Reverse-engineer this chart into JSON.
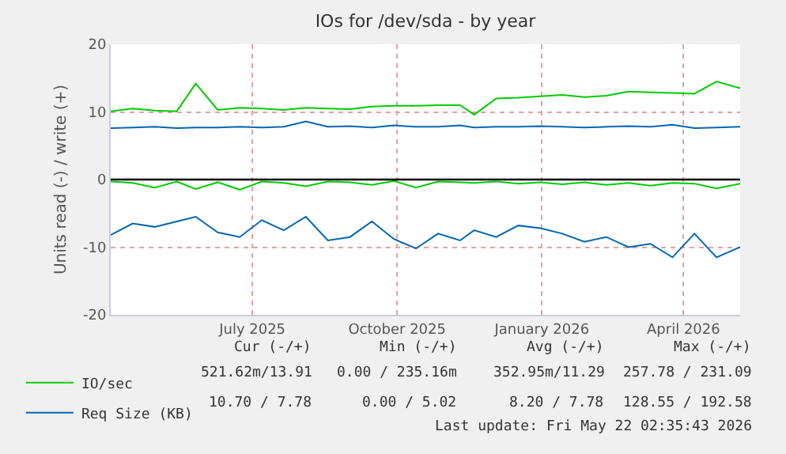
{
  "chart_data": {
    "type": "line",
    "title": "IOs for /dev/sda - by year",
    "ylabel": "Units read (-) / write (+)",
    "x": [
      "2025-04-17",
      "2025-05-01",
      "2025-05-15",
      "2025-05-29",
      "2025-06-10",
      "2025-06-24",
      "2025-07-08",
      "2025-07-22",
      "2025-08-05",
      "2025-08-19",
      "2025-09-02",
      "2025-09-16",
      "2025-09-30",
      "2025-10-14",
      "2025-10-28",
      "2025-11-11",
      "2025-11-25",
      "2025-12-04",
      "2025-12-18",
      "2026-01-01",
      "2026-01-15",
      "2026-01-29",
      "2026-02-12",
      "2026-02-26",
      "2026-03-12",
      "2026-03-26",
      "2026-04-09",
      "2026-04-23",
      "2026-05-07",
      "2026-05-22"
    ],
    "series": [
      {
        "name": "IO/sec",
        "color": "#00cc00",
        "values": [
          10.1,
          10.5,
          10.2,
          10.1,
          14.2,
          10.3,
          10.6,
          10.5,
          10.3,
          10.6,
          10.5,
          10.4,
          10.8,
          10.9,
          10.9,
          11.0,
          11.0,
          9.6,
          12.0,
          12.1,
          12.3,
          12.5,
          12.2,
          12.4,
          13.0,
          12.9,
          12.8,
          12.7,
          14.5,
          13.5
        ]
      },
      {
        "name": "Req Size (KB)",
        "color": "#0066b3",
        "values": [
          7.6,
          7.7,
          7.8,
          7.6,
          7.7,
          7.7,
          7.8,
          7.7,
          7.8,
          8.6,
          7.8,
          7.9,
          7.7,
          8.0,
          7.8,
          7.8,
          8.0,
          7.7,
          7.8,
          7.8,
          7.9,
          7.8,
          7.7,
          7.8,
          7.9,
          7.8,
          8.1,
          7.6,
          7.7,
          7.8
        ]
      },
      {
        "color": "#00cc00",
        "values": [
          -0.3,
          -0.5,
          -1.2,
          -0.3,
          -1.4,
          -0.4,
          -1.5,
          -0.3,
          -0.5,
          -1.0,
          -0.3,
          -0.4,
          -0.8,
          -0.2,
          -1.2,
          -0.3,
          -0.4,
          -0.5,
          -0.3,
          -0.6,
          -0.4,
          -0.7,
          -0.4,
          -0.8,
          -0.5,
          -0.9,
          -0.5,
          -0.6,
          -1.3,
          -0.6
        ]
      },
      {
        "color": "#0066b3",
        "values": [
          -8.2,
          -6.5,
          -7.0,
          -6.2,
          -5.5,
          -7.8,
          -8.5,
          -6.0,
          -7.5,
          -5.5,
          -9.0,
          -8.5,
          -6.2,
          -8.8,
          -10.2,
          -8.0,
          -9.0,
          -7.5,
          -8.5,
          -6.8,
          -7.2,
          -8.0,
          -9.2,
          -8.5,
          -10.0,
          -9.5,
          -11.5,
          -8.0,
          -11.5,
          -10.0
        ]
      }
    ],
    "xlim": [
      "2025-04-17",
      "2026-05-22"
    ],
    "xticks": [
      {
        "value": "2025-07-16",
        "label": "July 2025"
      },
      {
        "value": "2025-10-16",
        "label": "October 2025"
      },
      {
        "value": "2026-01-16",
        "label": "January 2026"
      },
      {
        "value": "2026-04-16",
        "label": "April 2026"
      }
    ],
    "ylim": [
      -20,
      20
    ],
    "yticks": [
      -20,
      -10,
      0,
      10,
      20
    ],
    "ref_lines": [
      {
        "axis": "y",
        "value": 0,
        "color": "#000000"
      }
    ],
    "grid": true,
    "legend": "bottom left",
    "marker": "none",
    "line_style": "solid",
    "annotations": [
      "Cur (-/+)",
      "Min (-/+)",
      "Avg (-/+)",
      "Max (-/+)",
      "521.62m/13.91",
      "0.00 / 235.16m",
      "352.95m/11.29",
      "257.78 / 231.09",
      "10.70 / 7.78",
      "0.00 / 5.02",
      "8.20 / 7.78",
      "128.55 / 192.58",
      "Last update: Fri May 22 02:35:43 2026"
    ]
  }
}
